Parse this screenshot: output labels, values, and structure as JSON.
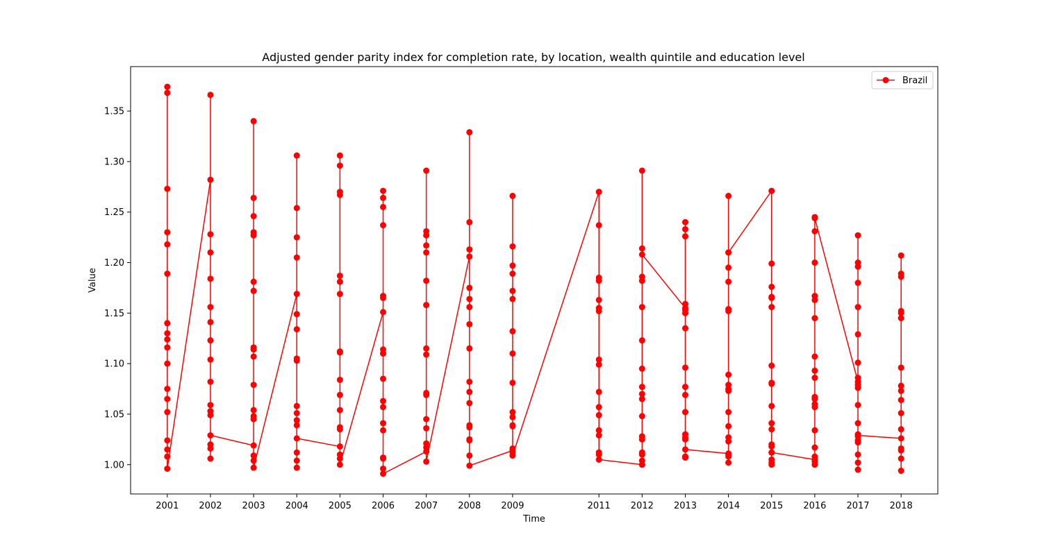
{
  "chart_data": {
    "type": "line",
    "title": "Adjusted gender parity index for completion rate, by location, wealth quintile and education level",
    "xlabel": "Time",
    "ylabel": "Value",
    "ylim": [
      0.971,
      1.394
    ],
    "xlim": [
      2000.15,
      2018.85
    ],
    "yticks": [
      1.0,
      1.05,
      1.1,
      1.15,
      1.2,
      1.25,
      1.3,
      1.35
    ],
    "xticks": [
      "2001",
      "2002",
      "2003",
      "2004",
      "2005",
      "2006",
      "2007",
      "2008",
      "2009",
      "2011",
      "2012",
      "2013",
      "2014",
      "2015",
      "2016",
      "2017",
      "2018"
    ],
    "grid": false,
    "legend_position": "top-right",
    "series": [
      {
        "name": "Brazil",
        "color": "#ff0000",
        "marker": "circle",
        "points": [
          {
            "year": 2001,
            "values": [
              1.189,
              1.374,
              1.368,
              1.273,
              1.23,
              1.218,
              1.14,
              1.13,
              1.124,
              1.116,
              1.1,
              1.075,
              1.065,
              1.052,
              1.024,
              1.015,
              1.008,
              0.996
            ]
          },
          {
            "year": 2002,
            "values": [
              1.282,
              1.366,
              1.228,
              1.21,
              1.184,
              1.156,
              1.141,
              1.123,
              1.104,
              1.082,
              1.059,
              1.053,
              1.049,
              1.02,
              1.016,
              1.006,
              1.029
            ]
          },
          {
            "year": 2003,
            "values": [
              1.019,
              1.34,
              1.264,
              1.246,
              1.23,
              1.227,
              1.181,
              1.172,
              1.116,
              1.114,
              1.107,
              1.079,
              1.054,
              1.048,
              1.045,
              1.009,
              1.004,
              0.997
            ]
          },
          {
            "year": 2004,
            "values": [
              1.169,
              1.306,
              1.254,
              1.225,
              1.205,
              1.149,
              1.134,
              1.105,
              1.103,
              1.058,
              1.051,
              1.044,
              1.039,
              1.012,
              1.004,
              0.997,
              1.026
            ]
          },
          {
            "year": 2005,
            "values": [
              1.018,
              1.306,
              1.296,
              1.27,
              1.267,
              1.187,
              1.181,
              1.169,
              1.112,
              1.111,
              1.084,
              1.069,
              1.054,
              1.037,
              1.035,
              1.01,
              1.006,
              1.0
            ]
          },
          {
            "year": 2006,
            "values": [
              1.151,
              1.271,
              1.264,
              1.255,
              1.237,
              1.167,
              1.165,
              1.114,
              1.11,
              1.085,
              1.063,
              1.057,
              1.041,
              1.034,
              1.007,
              1.006,
              0.996,
              0.991
            ]
          },
          {
            "year": 2007,
            "values": [
              1.013,
              1.291,
              1.231,
              1.227,
              1.217,
              1.21,
              1.182,
              1.158,
              1.115,
              1.109,
              1.071,
              1.069,
              1.045,
              1.036,
              1.021,
              1.017,
              1.003
            ]
          },
          {
            "year": 2008,
            "values": [
              1.206,
              1.329,
              1.24,
              1.213,
              1.175,
              1.164,
              1.156,
              1.139,
              1.115,
              1.082,
              1.072,
              1.061,
              1.039,
              1.037,
              1.025,
              1.024,
              1.009,
              0.999
            ]
          },
          {
            "year": 2009,
            "values": [
              1.014,
              1.266,
              1.216,
              1.197,
              1.189,
              1.172,
              1.164,
              1.132,
              1.11,
              1.081,
              1.052,
              1.047,
              1.039,
              1.038,
              1.016,
              1.012,
              1.009
            ]
          },
          {
            "year": 2011,
            "values": [
              1.27,
              1.237,
              1.185,
              1.182,
              1.163,
              1.155,
              1.152,
              1.104,
              1.099,
              1.072,
              1.057,
              1.049,
              1.034,
              1.029,
              1.012,
              1.01,
              1.005
            ]
          },
          {
            "year": 2012,
            "values": [
              1.0,
              1.291,
              1.214,
              1.186,
              1.182,
              1.156,
              1.123,
              1.095,
              1.077,
              1.07,
              1.065,
              1.048,
              1.028,
              1.025,
              1.012,
              1.01,
              1.004,
              1.0,
              1.208
            ]
          },
          {
            "year": 2013,
            "values": [
              1.155,
              1.24,
              1.233,
              1.226,
              1.159,
              1.153,
              1.15,
              1.135,
              1.096,
              1.077,
              1.069,
              1.052,
              1.03,
              1.027,
              1.025,
              1.008,
              1.007,
              1.015
            ]
          },
          {
            "year": 2014,
            "values": [
              1.011,
              1.266,
              1.21,
              1.195,
              1.181,
              1.154,
              1.152,
              1.089,
              1.079,
              1.075,
              1.073,
              1.052,
              1.038,
              1.027,
              1.023,
              1.01,
              1.008,
              1.002,
              1.21
            ]
          },
          {
            "year": 2015,
            "values": [
              1.271,
              1.199,
              1.176,
              1.166,
              1.165,
              1.156,
              1.098,
              1.081,
              1.08,
              1.058,
              1.041,
              1.035,
              1.02,
              1.018,
              1.012,
              1.005,
              1.002,
              1.0,
              1.012
            ]
          },
          {
            "year": 2016,
            "values": [
              1.005,
              1.245,
              1.231,
              1.2,
              1.167,
              1.163,
              1.145,
              1.107,
              1.093,
              1.086,
              1.067,
              1.065,
              1.06,
              1.057,
              1.034,
              1.017,
              1.008,
              1.003,
              1.0,
              1.244
            ]
          },
          {
            "year": 2017,
            "values": [
              1.082,
              1.227,
              1.2,
              1.196,
              1.18,
              1.156,
              1.129,
              1.101,
              1.086,
              1.079,
              1.076,
              1.059,
              1.041,
              1.03,
              1.028,
              1.024,
              1.022,
              1.01,
              1.002,
              0.995,
              1.029
            ]
          },
          {
            "year": 2018,
            "values": [
              1.026,
              1.207,
              1.189,
              1.186,
              1.152,
              1.15,
              1.145,
              1.096,
              1.078,
              1.073,
              1.064,
              1.051,
              1.035,
              1.016,
              1.014,
              1.006,
              0.994
            ]
          }
        ]
      }
    ]
  }
}
